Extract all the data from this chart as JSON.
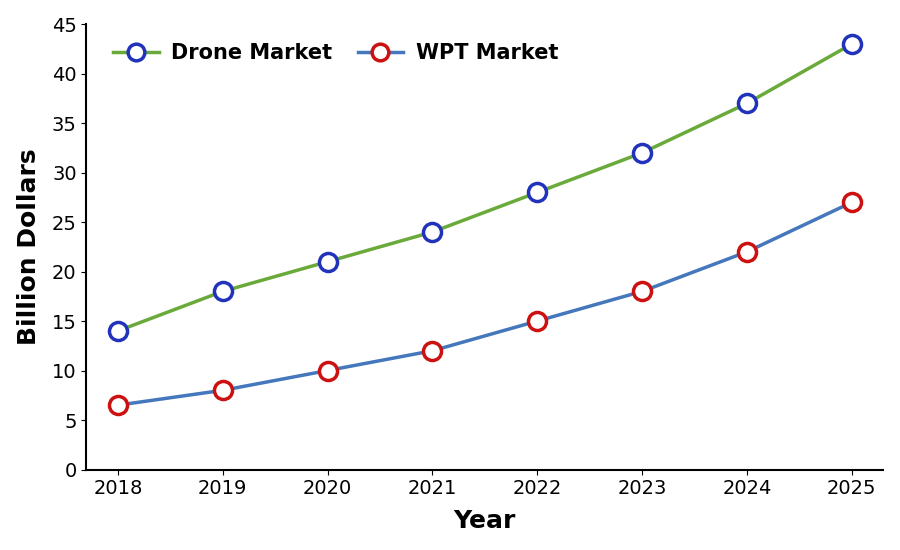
{
  "years": [
    2018,
    2019,
    2020,
    2021,
    2022,
    2023,
    2024,
    2025
  ],
  "drone_market": [
    14,
    18,
    21,
    24,
    28,
    32,
    37,
    43
  ],
  "wpt_market": [
    6.5,
    8,
    10,
    12,
    15,
    18,
    22,
    27
  ],
  "drone_line_color": "#6aaa3a",
  "drone_marker_face": "#ffffff",
  "drone_marker_edge": "#2233bb",
  "wpt_line_color": "#4477bb",
  "wpt_marker_face": "#ffffff",
  "wpt_marker_edge": "#cc1111",
  "xlabel": "Year",
  "ylabel": "Billion Dollars",
  "ylim": [
    0,
    45
  ],
  "xlim": [
    2017.7,
    2025.3
  ],
  "yticks": [
    0,
    5,
    10,
    15,
    20,
    25,
    30,
    35,
    40,
    45
  ],
  "xticks": [
    2018,
    2019,
    2020,
    2021,
    2022,
    2023,
    2024,
    2025
  ],
  "legend_drone": "Drone Market",
  "legend_wpt": "WPT Market",
  "background_color": "#ffffff",
  "marker_size": 13,
  "marker_edge_width": 2.5,
  "line_width": 2.5,
  "xlabel_fontsize": 18,
  "ylabel_fontsize": 18,
  "tick_fontsize": 14,
  "legend_fontsize": 15
}
